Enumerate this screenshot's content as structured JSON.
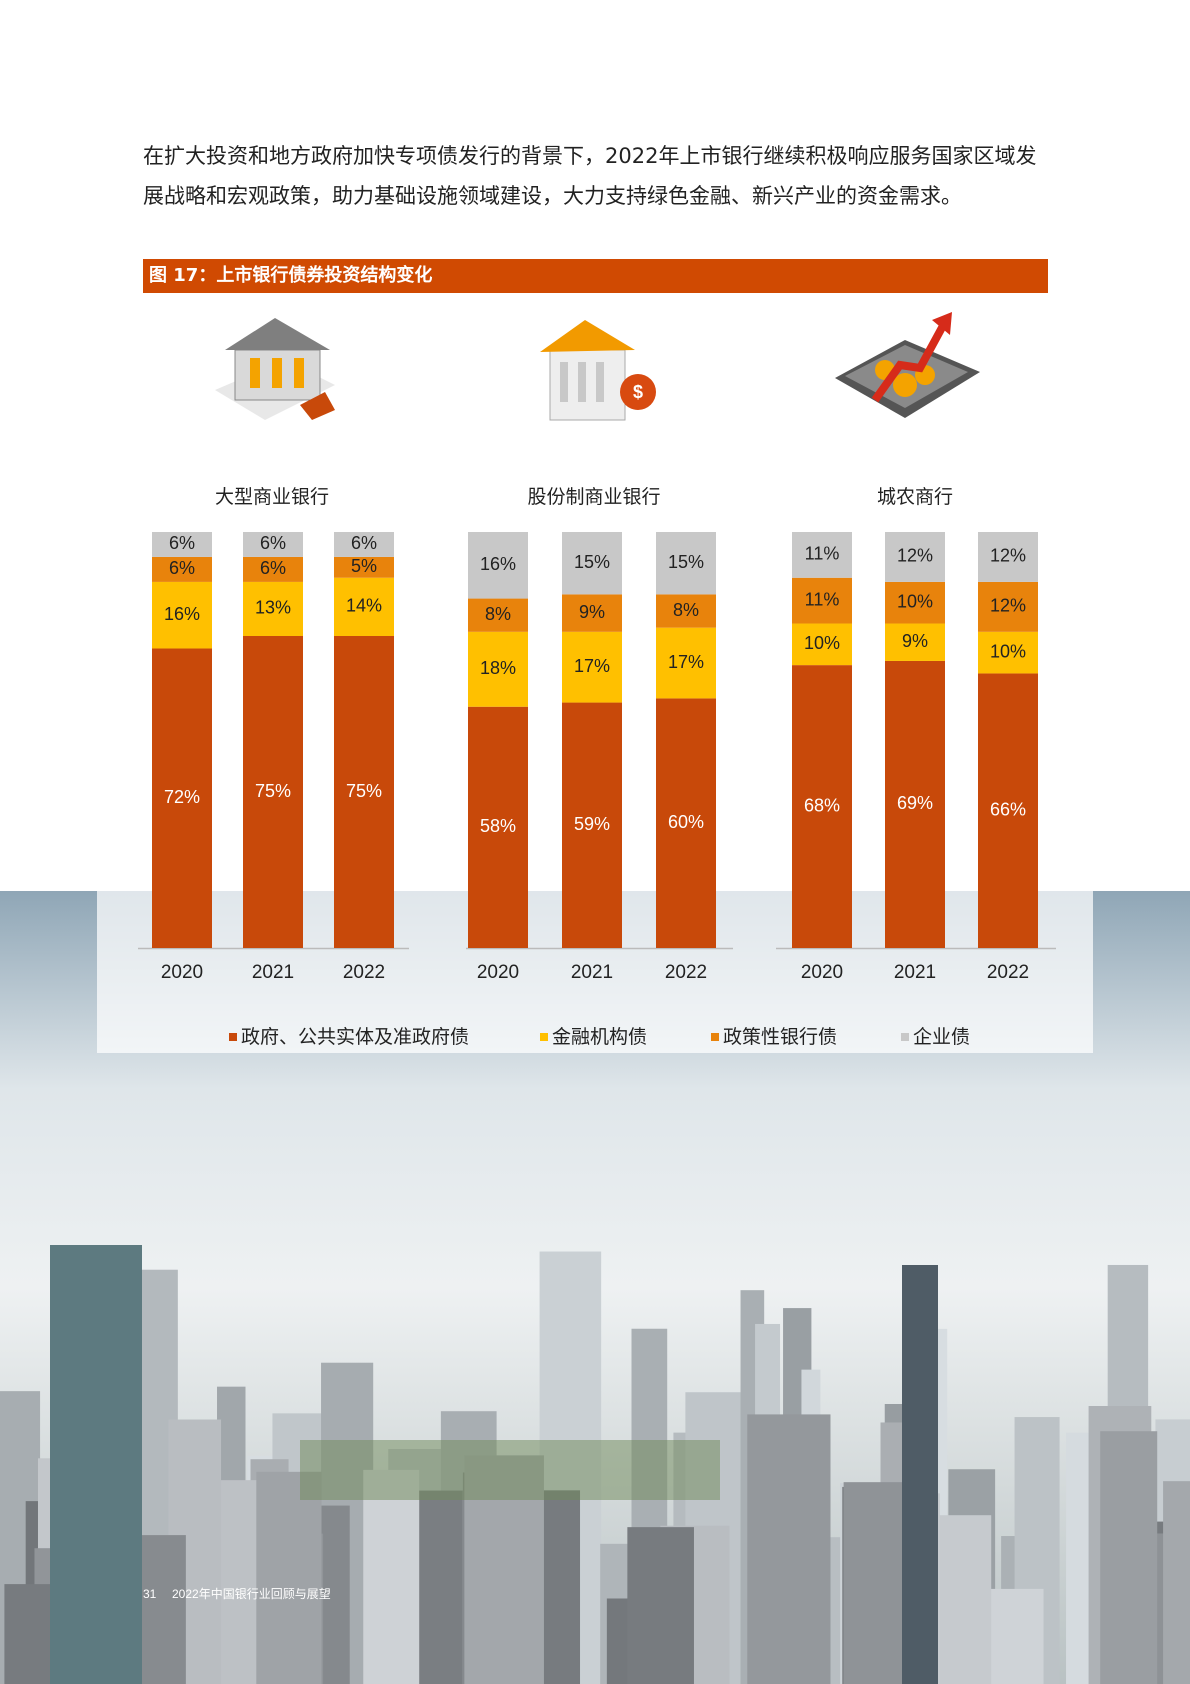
{
  "paragraph": "在扩大投资和地方政府加快专项债发行的背景下，2022年上市银行继续积极响应服务国家区域发展战略和宏观政策，助力基础设施领域建设，大力支持绿色金融、新兴产业的资金需求。",
  "figure_title": "图 17：上市银行债券投资结构变化",
  "footer": {
    "page": "31",
    "text": "2022年中国银行业回顾与展望"
  },
  "chart_data": {
    "type": "bar",
    "stacked": true,
    "ylim": [
      0,
      100
    ],
    "panels": [
      {
        "title": "大型商业银行",
        "categories": [
          "2020",
          "2021",
          "2022"
        ]
      },
      {
        "title": "股份制商业银行",
        "categories": [
          "2020",
          "2021",
          "2022"
        ]
      },
      {
        "title": "城农商行",
        "categories": [
          "2020",
          "2021",
          "2022"
        ]
      }
    ],
    "series": [
      {
        "name": "政府、公共实体及准政府债",
        "color": "#c8490a",
        "label_color": "#ffffff",
        "values": [
          [
            72,
            75,
            75
          ],
          [
            58,
            59,
            60
          ],
          [
            68,
            69,
            66
          ]
        ],
        "value_labels": [
          [
            "72%",
            "75%",
            "75%"
          ],
          [
            "58%",
            "59%",
            "60%"
          ],
          [
            "68%",
            "69%",
            "66%"
          ]
        ]
      },
      {
        "name": "金融机构债",
        "color": "#ffc000",
        "label_color": "#222222",
        "values": [
          [
            16,
            13,
            14
          ],
          [
            18,
            17,
            17
          ],
          [
            10,
            9,
            10
          ]
        ],
        "value_labels": [
          [
            "16%",
            "13%",
            "14%"
          ],
          [
            "18%",
            "17%",
            "17%"
          ],
          [
            "10%",
            "9%",
            "10%"
          ]
        ]
      },
      {
        "name": "政策性银行债",
        "color": "#e8830c",
        "label_color": "#222222",
        "values": [
          [
            6,
            6,
            5
          ],
          [
            8,
            9,
            8
          ],
          [
            11,
            10,
            12
          ]
        ],
        "value_labels": [
          [
            "6%",
            "6%",
            "5%"
          ],
          [
            "8%",
            "9%",
            "8%"
          ],
          [
            "11%",
            "10%",
            "12%"
          ]
        ]
      },
      {
        "name": "企业债",
        "color": "#c8c8c8",
        "label_color": "#222222",
        "values": [
          [
            6,
            6,
            6
          ],
          [
            16,
            15,
            15
          ],
          [
            11,
            12,
            12
          ]
        ],
        "value_labels": [
          [
            "6%",
            "6%",
            "6%"
          ],
          [
            "16%",
            "15%",
            "15%"
          ],
          [
            "11%",
            "12%",
            "12%"
          ]
        ]
      }
    ]
  }
}
